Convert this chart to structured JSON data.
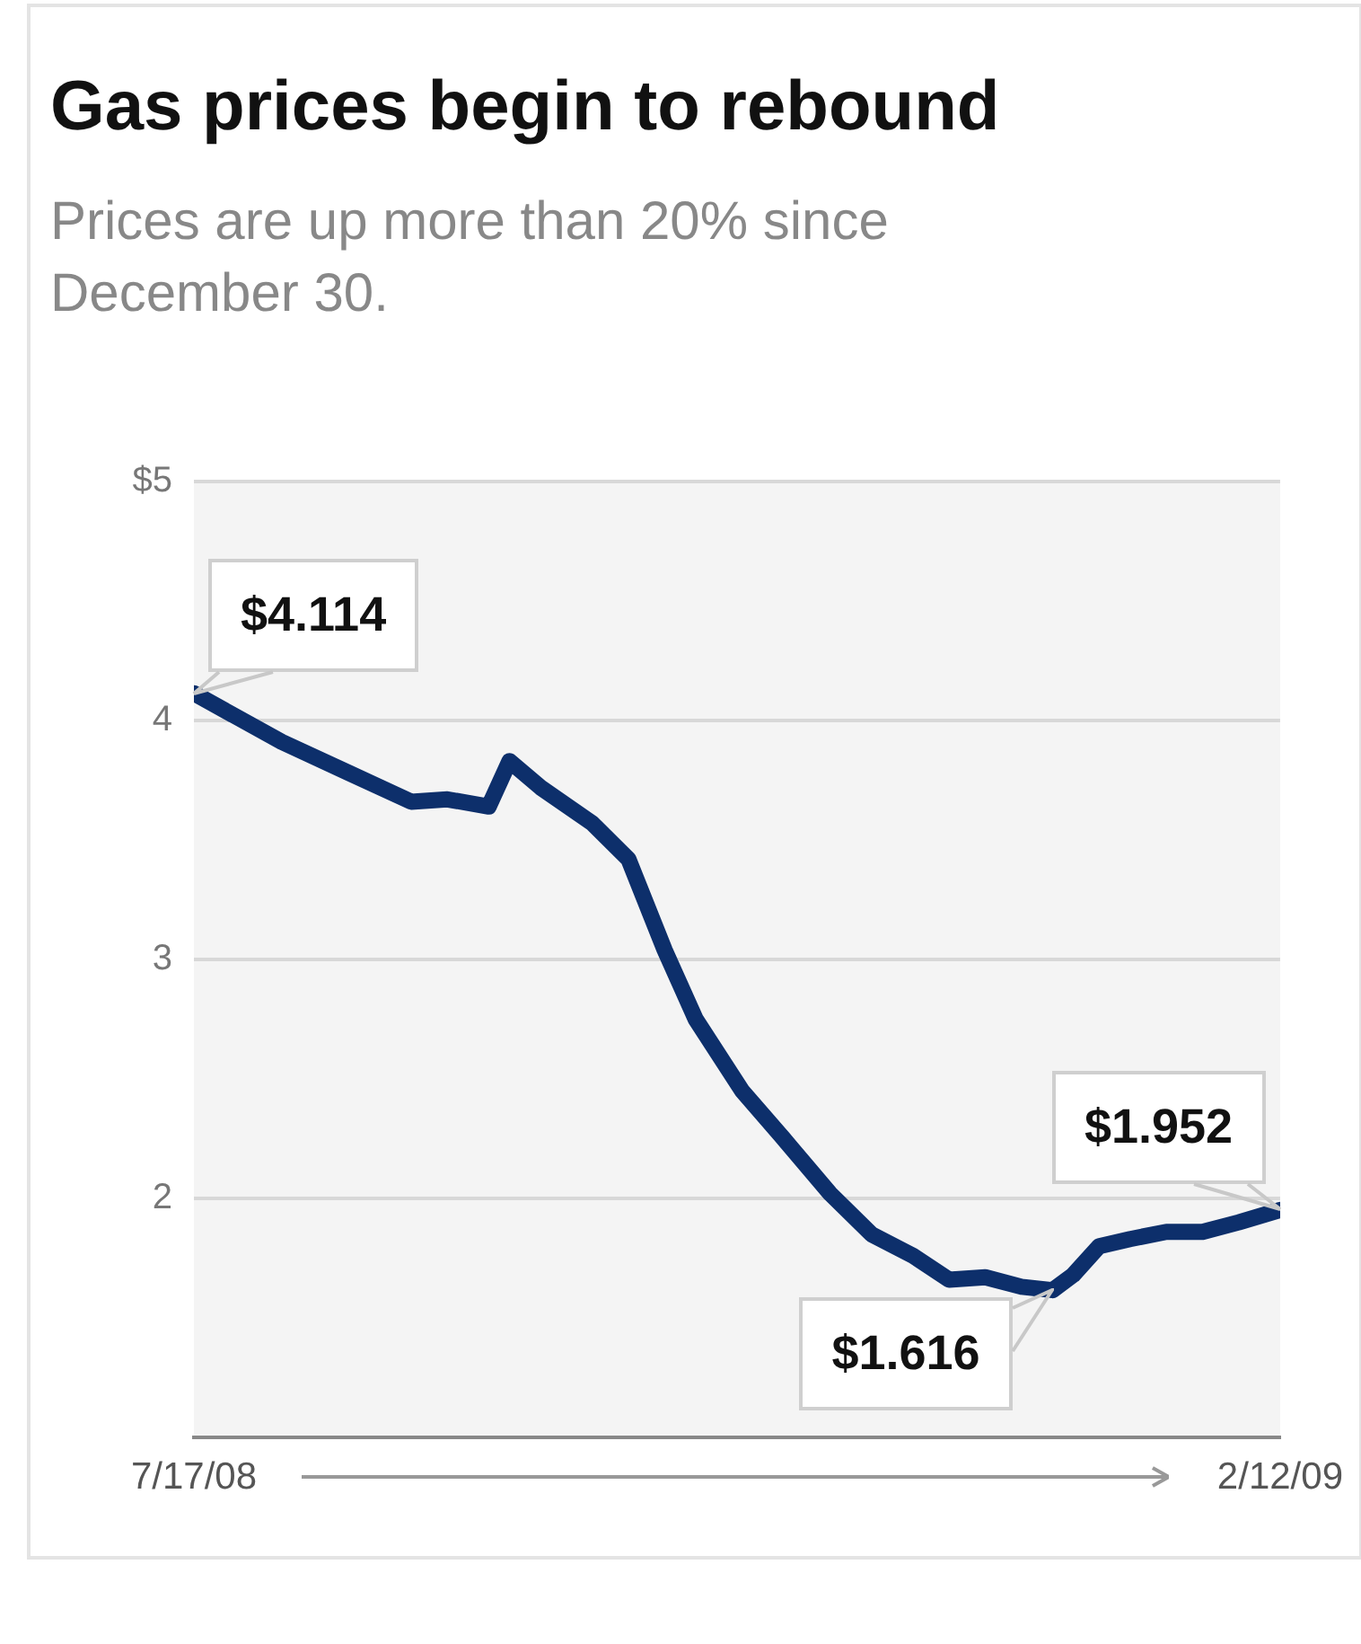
{
  "chart_data": {
    "type": "line",
    "title": "Gas prices begin to rebound",
    "subtitle": "Prices are up more than 20% since December 30.",
    "x": [
      "2008-07-17",
      "2008-08-03",
      "2008-08-16",
      "2008-08-28",
      "2008-09-04",
      "2008-09-12",
      "2008-09-16",
      "2008-09-22",
      "2008-10-02",
      "2008-10-09",
      "2008-10-16",
      "2008-10-22",
      "2008-10-31",
      "2008-11-08",
      "2008-11-17",
      "2008-11-25",
      "2008-12-03",
      "2008-12-10",
      "2008-12-17",
      "2008-12-24",
      "2008-12-30",
      "2009-01-03",
      "2009-01-08",
      "2009-01-14",
      "2009-01-21",
      "2009-01-28",
      "2009-02-04",
      "2009-02-12"
    ],
    "values": [
      4.114,
      3.91,
      3.78,
      3.66,
      3.67,
      3.64,
      3.83,
      3.72,
      3.57,
      3.42,
      3.04,
      2.75,
      2.45,
      2.25,
      2.02,
      1.85,
      1.76,
      1.66,
      1.67,
      1.63,
      1.616,
      1.68,
      1.8,
      1.83,
      1.86,
      1.86,
      1.9,
      1.952
    ],
    "value_labels": [
      "$4.114",
      null,
      null,
      null,
      null,
      null,
      null,
      null,
      null,
      null,
      null,
      null,
      null,
      null,
      null,
      null,
      null,
      null,
      null,
      null,
      "$1.616",
      null,
      null,
      null,
      null,
      null,
      null,
      "$1.952"
    ],
    "color": "#0d2f6b",
    "marker": "none",
    "line_style": "solid",
    "grid": "y",
    "xlim": [
      "2008-07-17",
      "2009-02-12"
    ],
    "xticks": [
      {
        "value": "2008-07-17",
        "label": "7/17/08"
      },
      {
        "value": "2009-02-12",
        "label": "2/12/09"
      }
    ],
    "ylim": [
      1,
      5
    ],
    "yticks": [
      2,
      3,
      4,
      {
        "value": 5,
        "label": "$5"
      }
    ]
  }
}
